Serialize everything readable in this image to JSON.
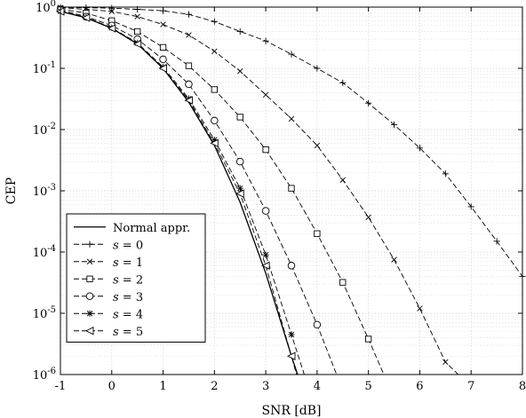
{
  "chart_data": {
    "type": "line",
    "title": "",
    "xlabel": "SNR [dB]",
    "ylabel": "CEP",
    "xlim": [
      -1,
      8
    ],
    "ylim": [
      1e-06,
      1
    ],
    "yscale": "log",
    "grid": true,
    "minor_grid": true,
    "legend_position": "bottom-left",
    "x_ticks": [
      "-1",
      "0",
      "1",
      "2",
      "3",
      "4",
      "5",
      "6",
      "7",
      "8"
    ],
    "y_ticks": [
      {
        "base": "10",
        "exp": "0"
      },
      {
        "base": "10",
        "exp": "-1"
      },
      {
        "base": "10",
        "exp": "-2"
      },
      {
        "base": "10",
        "exp": "-3"
      },
      {
        "base": "10",
        "exp": "-4"
      },
      {
        "base": "10",
        "exp": "-5"
      },
      {
        "base": "10",
        "exp": "-6"
      }
    ],
    "series": [
      {
        "name": "Normal appr.",
        "marker": "none",
        "dash": "solid",
        "x": [
          -1,
          -0.5,
          0,
          0.5,
          1,
          1.5,
          2,
          2.5,
          3,
          3.5,
          3.62
        ],
        "y": [
          0.85,
          0.67,
          0.45,
          0.25,
          0.1,
          0.028,
          0.0055,
          0.00065,
          4.5e-05,
          2e-06,
          1e-06
        ]
      },
      {
        "name": "s = 0",
        "marker": "plus",
        "dash": "dashed",
        "x": [
          -1,
          -0.5,
          0,
          0.5,
          1,
          1.5,
          2,
          2.5,
          3,
          3.5,
          4,
          4.5,
          5,
          5.5,
          6,
          6.5,
          7,
          7.5,
          8
        ],
        "y": [
          0.99,
          0.98,
          0.96,
          0.92,
          0.87,
          0.76,
          0.58,
          0.4,
          0.28,
          0.17,
          0.1,
          0.058,
          0.027,
          0.012,
          0.005,
          0.0019,
          0.00055,
          0.00015,
          4e-05
        ]
      },
      {
        "name": "s = 1",
        "marker": "x",
        "dash": "dashed",
        "x": [
          -1,
          -0.5,
          0,
          0.5,
          1,
          1.5,
          2,
          2.5,
          3,
          3.5,
          4,
          4.5,
          5,
          5.5,
          6,
          6.5,
          6.75
        ],
        "y": [
          0.98,
          0.92,
          0.85,
          0.7,
          0.52,
          0.35,
          0.19,
          0.09,
          0.037,
          0.015,
          0.0055,
          0.0015,
          0.00037,
          7.5e-05,
          1.2e-05,
          1.6e-06,
          1e-06
        ]
      },
      {
        "name": "s = 2",
        "marker": "square",
        "dash": "dashed",
        "x": [
          -1,
          -0.5,
          0,
          0.5,
          1,
          1.5,
          2,
          2.5,
          3,
          3.5,
          4,
          4.5,
          5,
          5.3
        ],
        "y": [
          0.93,
          0.8,
          0.6,
          0.4,
          0.22,
          0.11,
          0.045,
          0.016,
          0.0047,
          0.0011,
          0.0002,
          3.2e-05,
          3.8e-06,
          1e-06
        ]
      },
      {
        "name": "s = 3",
        "marker": "circle",
        "dash": "dashed",
        "x": [
          -1,
          -0.5,
          0,
          0.5,
          1,
          1.5,
          2,
          2.5,
          3,
          3.5,
          4,
          4.38
        ],
        "y": [
          0.9,
          0.7,
          0.5,
          0.3,
          0.14,
          0.055,
          0.014,
          0.003,
          0.00047,
          6e-05,
          6.5e-06,
          1e-06
        ]
      },
      {
        "name": "s = 4",
        "marker": "asterisk",
        "dash": "dashed",
        "x": [
          -1,
          -0.5,
          0,
          0.5,
          1,
          1.5,
          2,
          2.5,
          3,
          3.5,
          3.75
        ],
        "y": [
          0.86,
          0.68,
          0.46,
          0.26,
          0.105,
          0.032,
          0.0068,
          0.0011,
          9e-05,
          4.5e-06,
          1e-06
        ]
      },
      {
        "name": "s = 5",
        "marker": "triangle-left",
        "dash": "dashed",
        "x": [
          -1,
          -0.5,
          0,
          0.5,
          1,
          1.5,
          2,
          2.5,
          3,
          3.5,
          3.6
        ],
        "y": [
          0.85,
          0.67,
          0.45,
          0.25,
          0.1,
          0.03,
          0.006,
          0.0009,
          6e-05,
          2e-06,
          1e-06
        ]
      }
    ]
  }
}
